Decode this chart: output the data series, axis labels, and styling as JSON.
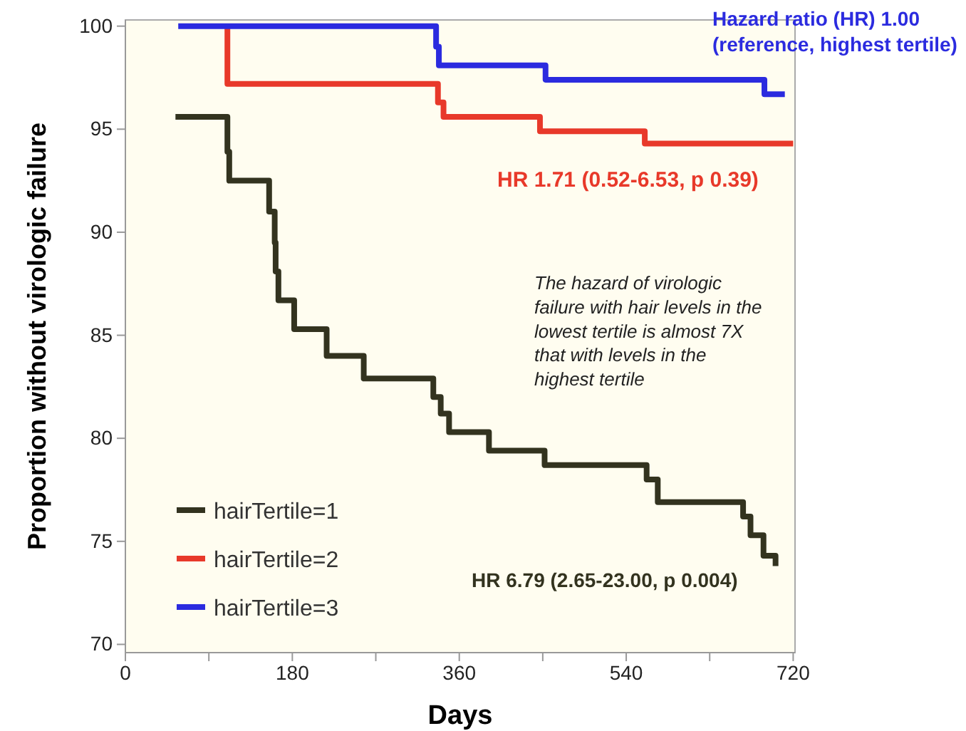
{
  "chart_data": {
    "type": "step",
    "xlabel": "Days",
    "ylabel": "Proportion without virologic failure",
    "xlim": [
      0,
      722
    ],
    "ylim": [
      69.6,
      100.3
    ],
    "xticks": [
      0,
      {
        "value": 90,
        "label": null
      },
      180,
      {
        "value": 270,
        "label": null
      },
      360,
      {
        "value": 450,
        "label": null
      },
      540,
      {
        "value": 630,
        "label": null
      },
      720
    ],
    "yticks": [
      70,
      75,
      80,
      85,
      90,
      95,
      100
    ],
    "grid": false,
    "legend": "bottom left",
    "line_style": "solid",
    "marker": "none",
    "series": [
      {
        "name": "hairTertile=1",
        "color": "#33331f",
        "x": [
          54,
          110,
          112,
          155,
          161,
          162,
          165,
          182,
          217,
          257,
          332,
          340,
          349,
          392,
          452,
          562,
          574,
          666,
          674,
          688,
          701,
          701
        ],
        "values": [
          95.6,
          93.9,
          92.5,
          91.0,
          89.5,
          88.1,
          86.7,
          85.3,
          84.0,
          82.9,
          82.0,
          81.2,
          80.3,
          79.4,
          78.7,
          78.0,
          76.9,
          76.2,
          75.3,
          74.3,
          73.8,
          73.8
        ]
      },
      {
        "name": "hairTertile=2",
        "color": "#e8392a",
        "x": [
          110,
          110,
          337,
          343,
          447,
          560,
          720
        ],
        "values": [
          100,
          97.2,
          96.3,
          95.6,
          94.9,
          94.3,
          94.3
        ]
      },
      {
        "name": "hairTertile=3",
        "color": "#2b2bdf",
        "x": [
          57,
          335,
          338,
          453,
          689,
          711
        ],
        "values": [
          100,
          99.0,
          98.1,
          97.4,
          96.7,
          96.7
        ]
      }
    ],
    "annotations": [
      "Hazard ratio (HR) 1.00\n(reference, highest tertile)",
      "HR 1.71 (0.52-6.53, p 0.39)",
      "HR 6.79 (2.65-23.00, p 0.004)",
      "The hazard of virologic\nfailure with hair levels in the\nlowest tertile is almost 7X\nthat with levels in the\nhighest tertile"
    ]
  }
}
